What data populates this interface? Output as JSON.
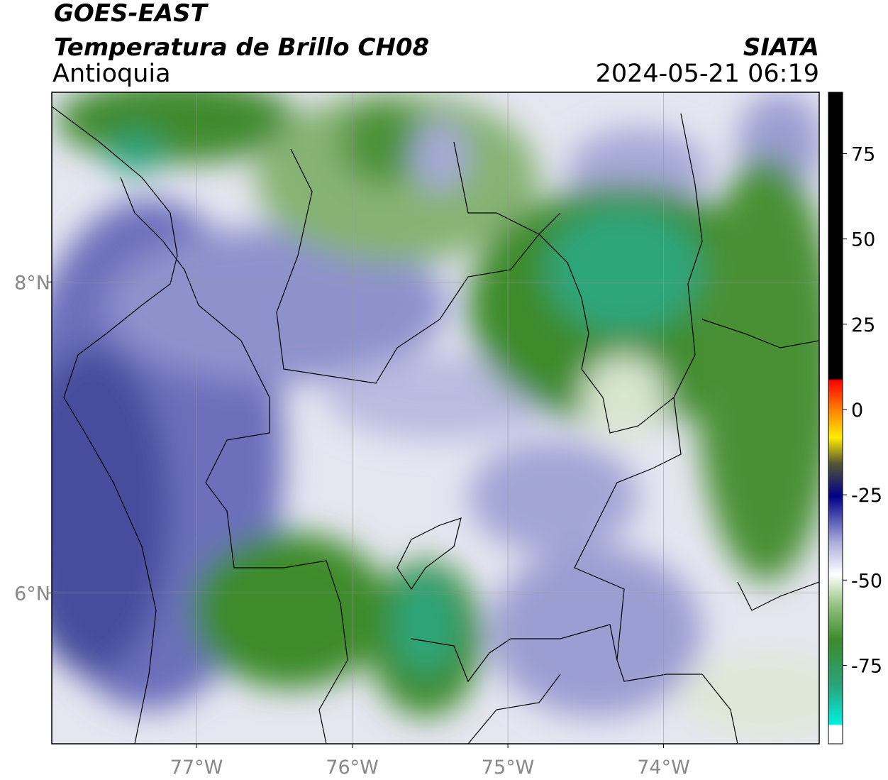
{
  "header": {
    "title": "GOES-EAST",
    "subtitle": "Temperatura de Brillo CH08",
    "region": "Antioquia",
    "source": "SIATA",
    "timestamp": "2024-05-21 06:19"
  },
  "map": {
    "xlim": [
      -77.93,
      -73.0
    ],
    "ylim": [
      5.03,
      9.22
    ],
    "xticks": [
      {
        "value": -77,
        "label": "77°W"
      },
      {
        "value": -76,
        "label": "76°W"
      },
      {
        "value": -75,
        "label": "75°W"
      },
      {
        "value": -74,
        "label": "74°W"
      }
    ],
    "yticks": [
      {
        "value": 8,
        "label": "8°N"
      },
      {
        "value": 6,
        "label": "6°N"
      }
    ],
    "grid": true
  },
  "colorbar": {
    "lim": [
      -98,
      93
    ],
    "ticks": [
      -75,
      -50,
      -25,
      0,
      25,
      50,
      75
    ]
  }
}
